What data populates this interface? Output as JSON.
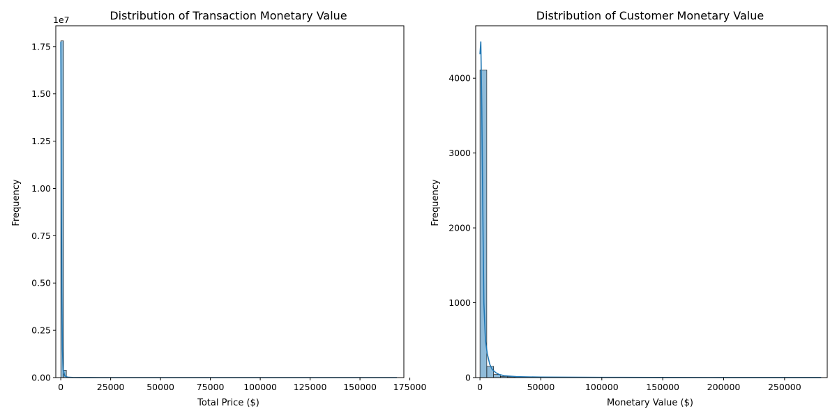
{
  "chart_data": [
    {
      "type": "histogram",
      "title": "Distribution of Transaction Monetary Value",
      "xlabel": "Total Price ($)",
      "ylabel": "Frequency",
      "xlim": [
        -2500,
        172000
      ],
      "ylim": [
        0,
        18600000
      ],
      "offset_label": "1e7",
      "x_ticks": [
        0,
        25000,
        50000,
        75000,
        100000,
        125000,
        150000,
        175000
      ],
      "x_tick_labels": [
        "0",
        "25000",
        "50000",
        "75000",
        "100000",
        "125000",
        "150000",
        "175000"
      ],
      "y_ticks": [
        0,
        2500000,
        5000000,
        7500000,
        10000000,
        12500000,
        15000000,
        17500000
      ],
      "y_tick_labels": [
        "0.00",
        "0.25",
        "0.50",
        "0.75",
        "1.00",
        "1.25",
        "1.50",
        "1.75"
      ],
      "bins": {
        "start": 0,
        "width": 1400,
        "counts": [
          17800000,
          390000,
          0,
          0,
          0,
          0,
          0,
          0,
          0,
          0,
          0,
          0,
          0,
          0,
          0,
          0,
          0,
          0,
          0,
          0,
          0,
          0,
          0,
          0,
          0,
          0,
          0,
          0,
          0,
          0,
          0,
          0,
          0,
          0,
          0,
          0,
          0,
          0,
          0,
          0,
          0,
          0,
          0,
          0,
          0,
          0,
          0,
          0,
          0,
          0
        ]
      },
      "kde": {
        "x": [
          0,
          150,
          300,
          500,
          800,
          1200,
          2000,
          3500,
          6000,
          10000,
          20000,
          50000,
          100000,
          168500
        ],
        "y": [
          17750000,
          14000000,
          9000000,
          4500000,
          1500000,
          400000,
          90000,
          20000,
          5000,
          1500,
          500,
          200,
          100,
          50
        ]
      },
      "bar_color": "#1f77b4",
      "grid": false
    },
    {
      "type": "histogram",
      "title": "Distribution of Customer Monetary Value",
      "xlabel": "Monetary Value ($)",
      "ylabel": "Frequency",
      "xlim": [
        -3500,
        285000
      ],
      "ylim": [
        0,
        4700
      ],
      "x_ticks": [
        0,
        50000,
        100000,
        150000,
        200000,
        250000
      ],
      "x_tick_labels": [
        "0",
        "50000",
        "100000",
        "150000",
        "200000",
        "250000"
      ],
      "y_ticks": [
        0,
        1000,
        2000,
        3000,
        4000
      ],
      "y_tick_labels": [
        "0",
        "1000",
        "2000",
        "3000",
        "4000"
      ],
      "bins": {
        "start": 0,
        "width": 5600,
        "counts": [
          4110,
          150,
          40,
          15,
          10,
          8,
          6,
          5,
          4,
          3,
          2,
          2,
          2,
          1,
          1,
          1,
          1,
          1,
          1,
          1,
          1,
          1,
          0,
          0,
          0,
          0,
          0,
          0,
          0,
          0,
          0,
          0,
          0,
          0,
          0,
          0,
          1,
          0,
          0,
          0,
          0,
          0,
          0,
          0,
          0,
          0,
          0,
          0,
          0,
          1
        ]
      },
      "kde": {
        "x": [
          0,
          700,
          1500,
          2500,
          3200,
          4500,
          6000,
          8000,
          10000,
          13000,
          16000,
          20000,
          30000,
          50000,
          100000,
          150000,
          200000,
          250000,
          280000
        ],
        "y": [
          4320,
          4490,
          3600,
          2000,
          1000,
          500,
          320,
          180,
          110,
          65,
          40,
          25,
          12,
          6,
          3,
          2,
          1,
          0.5,
          0.2
        ]
      },
      "bar_color": "#1f77b4",
      "grid": false
    }
  ]
}
